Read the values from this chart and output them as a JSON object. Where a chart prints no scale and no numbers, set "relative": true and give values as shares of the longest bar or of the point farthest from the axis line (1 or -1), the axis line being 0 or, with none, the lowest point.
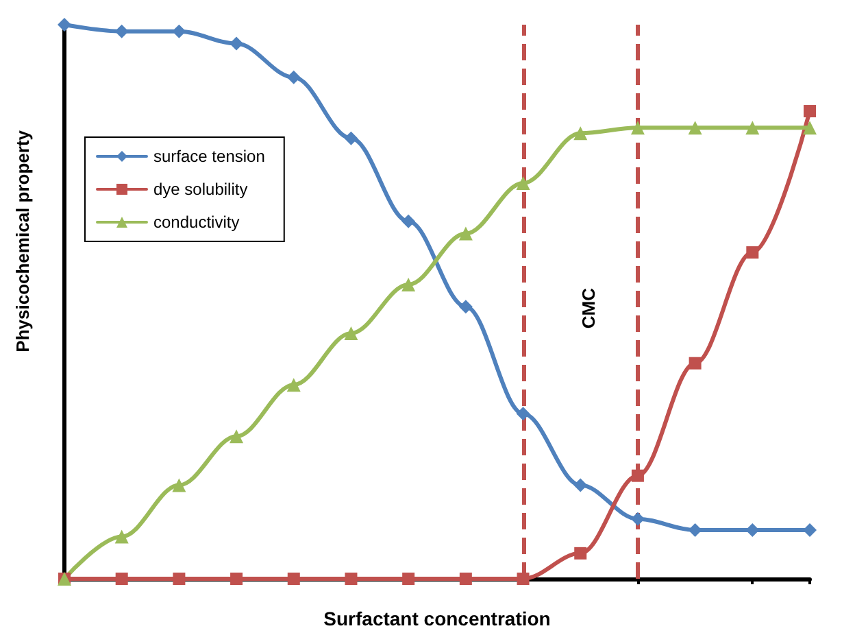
{
  "chart_data": {
    "type": "line",
    "relative": true,
    "xlabel": "Surfactant concentration",
    "ylabel": "Physicochemical property",
    "categories": [
      null,
      null,
      null,
      null,
      null,
      null,
      null,
      null,
      null,
      null,
      null,
      null,
      null,
      null
    ],
    "series": [
      {
        "name": "surface tension",
        "color": "#4f81bd",
        "marker": "diamond",
        "values": [
          1,
          0.988,
          0.988,
          0.966,
          0.905,
          0.795,
          0.645,
          0.491,
          0.298,
          0.169,
          0.108,
          0.088,
          0.088,
          0.088
        ]
      },
      {
        "name": "dye solubility",
        "color": "#c0504d",
        "marker": "square",
        "values": [
          0,
          0,
          0,
          0,
          0,
          0,
          0,
          0,
          0,
          0.046,
          0.186,
          0.389,
          0.589,
          0.844
        ]
      },
      {
        "name": "conductivity",
        "color": "#9bbb59",
        "marker": "triangle",
        "values": [
          0,
          0.076,
          0.169,
          0.257,
          0.35,
          0.443,
          0.531,
          0.623,
          0.714,
          0.804,
          0.814,
          0.814,
          0.814,
          0.814
        ]
      }
    ],
    "annotations": [
      "CMC"
    ],
    "legend": "top left",
    "grid": false,
    "line_style": "solid"
  }
}
